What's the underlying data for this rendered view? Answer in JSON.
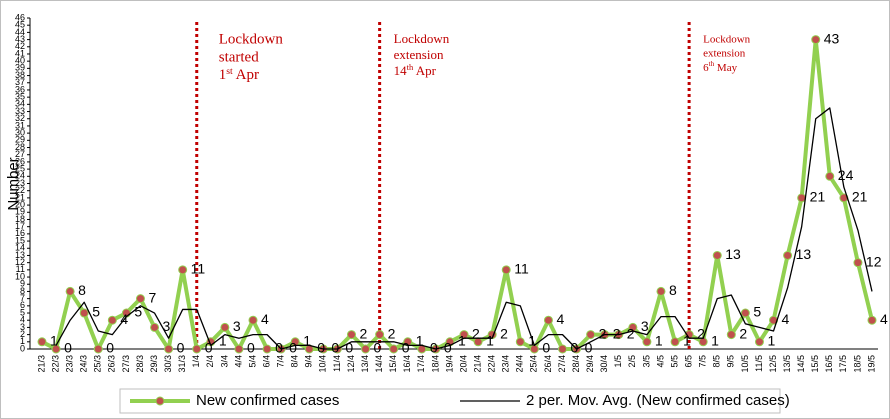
{
  "chart_data": {
    "type": "line",
    "y_label": "Number",
    "categories": [
      "21/3",
      "22/3",
      "23/3",
      "24/3",
      "25/3",
      "26/3",
      "27/3",
      "28/3",
      "29/3",
      "30/3",
      "31/3",
      "1/4",
      "2/4",
      "3/4",
      "4/4",
      "5/4",
      "6/4",
      "7/4",
      "8/4",
      "9/4",
      "10/4",
      "11/4",
      "12/4",
      "13/4",
      "14/4",
      "15/4",
      "16/4",
      "17/4",
      "18/4",
      "19/4",
      "20/4",
      "21/4",
      "22/4",
      "23/4",
      "24/4",
      "25/4",
      "26/4",
      "27/4",
      "28/4",
      "29/4",
      "30/4",
      "1/5",
      "2/5",
      "3/5",
      "4/5",
      "5/5",
      "6/5",
      "7/5",
      "8/5",
      "9/5",
      "10/5",
      "11/5",
      "12/5",
      "13/5",
      "14/5",
      "15/5",
      "16/5",
      "17/5",
      "18/5",
      "19/5"
    ],
    "series": [
      {
        "name": "New confirmed cases",
        "color": "#92d050",
        "marker_color": "#c0504d",
        "data_labels": true,
        "values": [
          1,
          0,
          8,
          5,
          0,
          4,
          5,
          7,
          3,
          0,
          11,
          0,
          1,
          3,
          0,
          4,
          0,
          0,
          1,
          0,
          0,
          0,
          2,
          0,
          2,
          0,
          1,
          0,
          0,
          1,
          2,
          1,
          2,
          11,
          1,
          0,
          4,
          0,
          0,
          2,
          2,
          2,
          3,
          1,
          8,
          1,
          2,
          1,
          13,
          2,
          5,
          1,
          4,
          13,
          21,
          43,
          24,
          21,
          12,
          4
        ]
      },
      {
        "name": "2 per. Mov. Avg. (New confirmed cases)",
        "color": "#000000",
        "data_labels": false,
        "values": [
          null,
          0.5,
          4,
          6.5,
          2.5,
          2,
          4.5,
          6,
          5,
          1.5,
          5.5,
          5.5,
          0.5,
          2,
          1.5,
          2,
          2,
          0,
          0.5,
          0.5,
          0,
          0,
          1,
          1,
          1,
          1,
          0.5,
          0.5,
          0,
          0.5,
          1.5,
          1.5,
          1.5,
          6.5,
          6,
          0.5,
          2,
          2,
          0,
          1,
          2,
          2,
          2.5,
          2,
          4.5,
          4.5,
          1.5,
          1.5,
          7,
          7.5,
          3.5,
          3,
          2.5,
          8.5,
          17,
          32,
          33.5,
          22.5,
          16.5,
          8
        ]
      }
    ],
    "ylim": [
      0,
      46
    ],
    "yticks": [
      0,
      1,
      2,
      3,
      4,
      5,
      6,
      7,
      8,
      9,
      10,
      11,
      12,
      13,
      14,
      15,
      16,
      17,
      18,
      19,
      20,
      21,
      22,
      23,
      24,
      25,
      26,
      27,
      28,
      29,
      30,
      31,
      32,
      33,
      34,
      35,
      36,
      37,
      38,
      39,
      40,
      41,
      42,
      43,
      44,
      45,
      46
    ],
    "grid": false,
    "legend": "bottom",
    "annotations": [
      {
        "at": "1/4",
        "lines": [
          "Lockdown",
          "started"
        ],
        "date": [
          "1",
          "st",
          " Apr"
        ]
      },
      {
        "at": "14/4",
        "lines": [
          "Lockdown",
          "extension"
        ],
        "date": [
          "14",
          "th",
          " Apr"
        ]
      },
      {
        "at": "6/5",
        "lines": [
          "Lockdown",
          "extension"
        ],
        "date": [
          "6",
          "th",
          " May"
        ]
      }
    ]
  }
}
